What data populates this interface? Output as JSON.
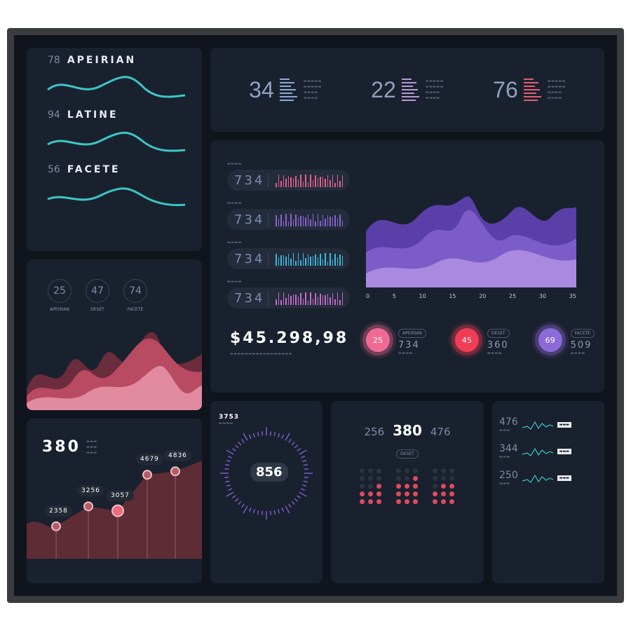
{
  "waves": [
    {
      "value": "78",
      "label": "APEIRIAN"
    },
    {
      "value": "94",
      "label": "LATINE"
    },
    {
      "value": "56",
      "label": "FACETE"
    }
  ],
  "circles": [
    {
      "value": "25",
      "label": "APEIRIAN"
    },
    {
      "value": "47",
      "label": "DESET"
    },
    {
      "value": "74",
      "label": "FACETE"
    }
  ],
  "top_stats": [
    {
      "value": "34",
      "color": "#8fa6d8"
    },
    {
      "value": "22",
      "color": "#b79ad8"
    },
    {
      "value": "76",
      "color": "#e06070"
    }
  ],
  "pills": [
    {
      "value": "734",
      "color": "#e0608c"
    },
    {
      "value": "734",
      "color": "#8a62d0"
    },
    {
      "value": "734",
      "color": "#3fb8d8"
    },
    {
      "value": "734",
      "color": "#c46ac8"
    }
  ],
  "money": "$45.298,98",
  "area_axis": [
    "0",
    "5",
    "10",
    "15",
    "20",
    "25",
    "30",
    "35"
  ],
  "orbs": [
    {
      "value": "25",
      "tag": "APEIRIAN",
      "num": "734",
      "color": "#f06b94"
    },
    {
      "value": "45",
      "tag": "DESET",
      "num": "360",
      "color": "#ef3d55"
    },
    {
      "value": "69",
      "tag": "FACETE",
      "num": "509",
      "color": "#8c6ad8"
    }
  ],
  "line_card": {
    "headline": "380",
    "points": [
      {
        "label": "2358",
        "value": 2358
      },
      {
        "label": "3256",
        "value": 3256
      },
      {
        "label": "3057",
        "value": 3057
      },
      {
        "label": "4679",
        "value": 4679
      },
      {
        "label": "4836",
        "value": 4836
      }
    ]
  },
  "gauge": {
    "corner": "3753",
    "center": "856"
  },
  "dots_card": {
    "left": "256",
    "center": "380",
    "right": "476",
    "button": "DESET"
  },
  "spark_card": [
    {
      "value": "476"
    },
    {
      "value": "344"
    },
    {
      "value": "250"
    }
  ],
  "colors": {
    "teal": "#3cc6c8",
    "pink": "#e0607a",
    "purple": "#8a62d0",
    "bg": "#0f141d",
    "panel": "#19212e"
  }
}
